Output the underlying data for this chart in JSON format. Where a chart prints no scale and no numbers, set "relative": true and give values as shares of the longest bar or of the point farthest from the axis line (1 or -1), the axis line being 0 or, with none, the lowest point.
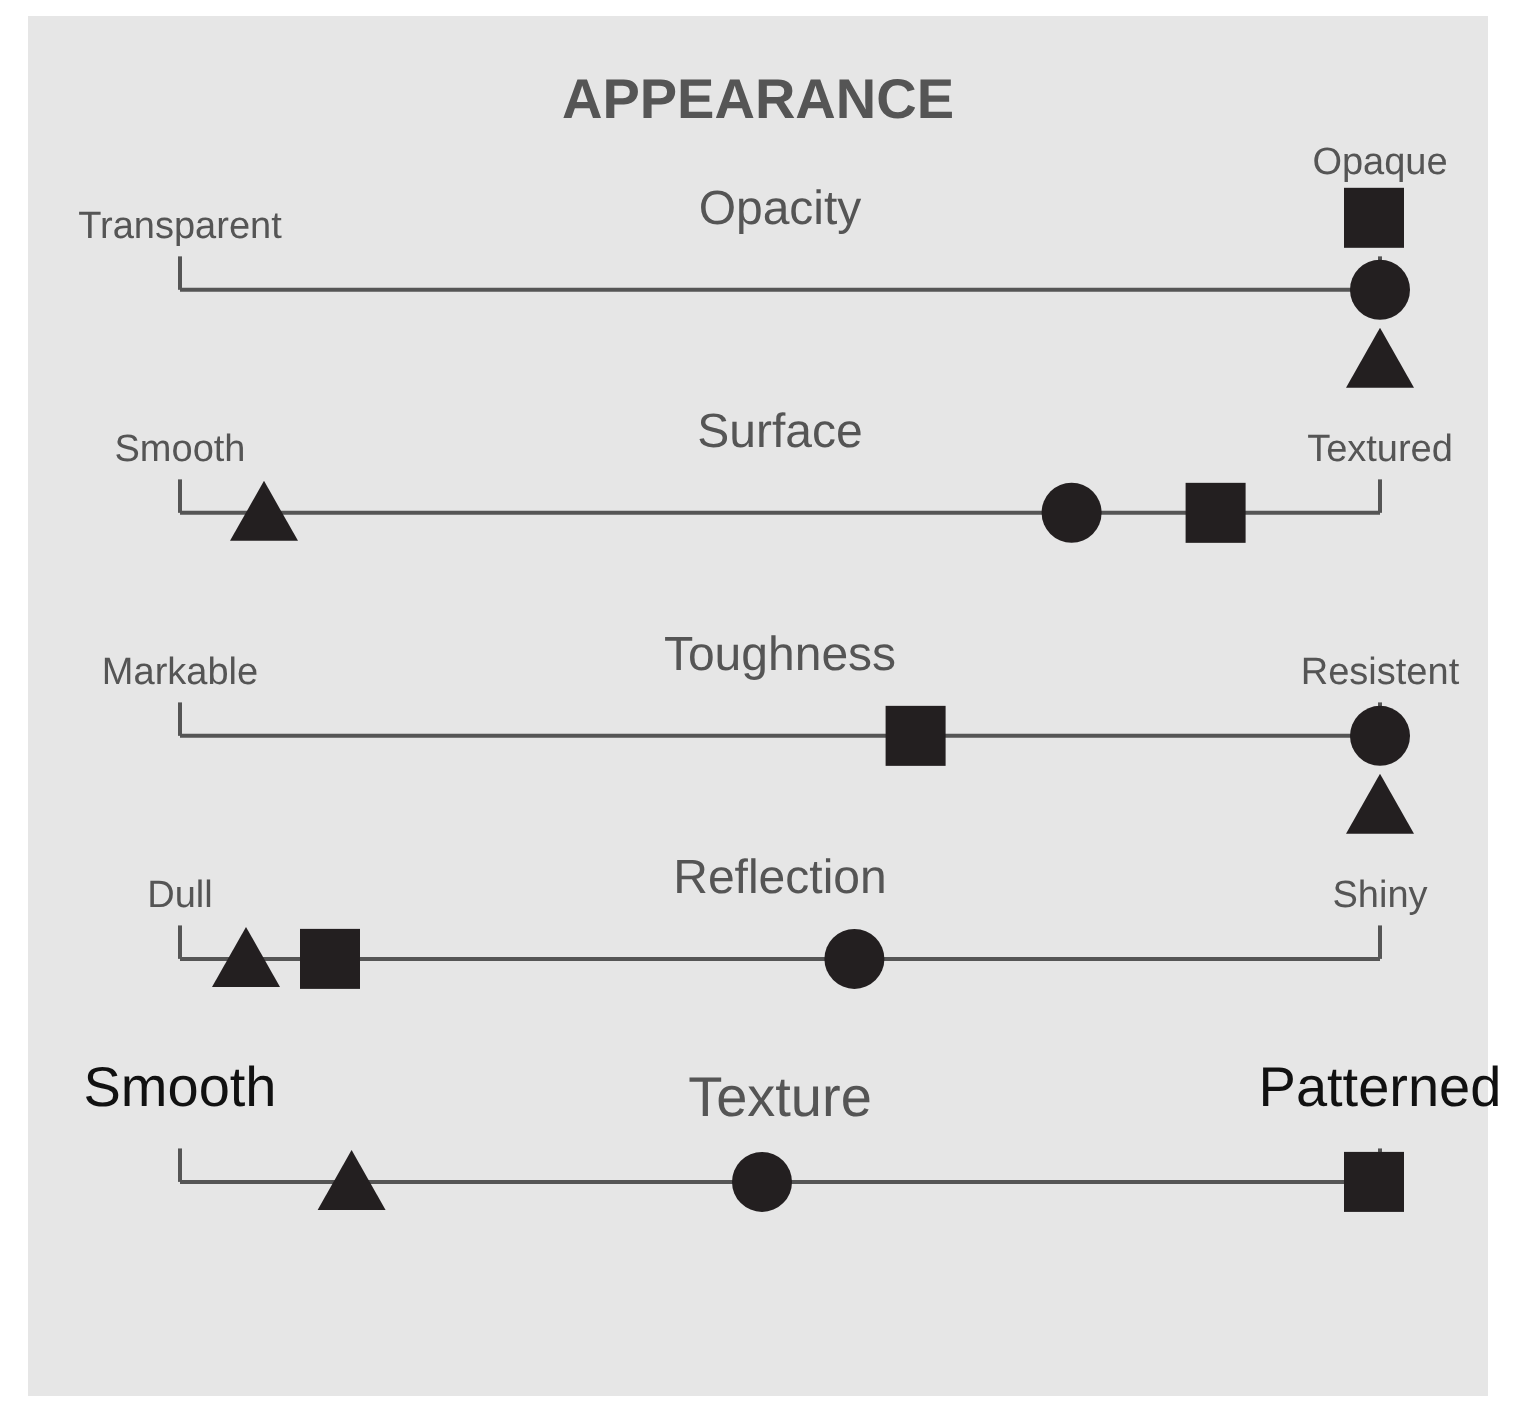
{
  "chart_data": {
    "type": "scatter",
    "title": "APPEARANCE",
    "orientation": "horizontal",
    "relative": true,
    "grid": "y",
    "legend": false,
    "categories": [
      "Opacity",
      "Surface",
      "Toughness",
      "Reflection",
      "Texture"
    ],
    "series": [
      {
        "color": "#231f20",
        "marker": "circle",
        "values": [
          1,
          0.743,
          1,
          0.562,
          0.485
        ]
      },
      {
        "color": "#231f20",
        "marker": "square",
        "values": [
          0.995,
          0.863,
          0.613,
          0.125,
          0.995
        ]
      },
      {
        "color": "#231f20",
        "marker": "triangle",
        "values": [
          1,
          0.07,
          1,
          0.055,
          0.143
        ]
      }
    ],
    "annotations": [
      "Transparent",
      "Opaque",
      "Smooth",
      "Textured",
      "Markable",
      "Resistent",
      "Dull",
      "Shiny",
      "Smooth",
      "Patterned"
    ]
  }
}
